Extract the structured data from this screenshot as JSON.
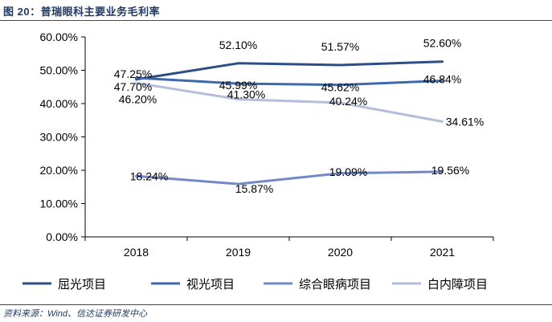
{
  "figure": {
    "title": "图 20：普瑞眼科主要业务毛利率",
    "source": "资料来源：Wind、信达证券研发中心"
  },
  "chart_data": {
    "type": "line",
    "categories": [
      "2018",
      "2019",
      "2020",
      "2021"
    ],
    "ylim": [
      0,
      60
    ],
    "yticks": [
      "0.00%",
      "10.00%",
      "20.00%",
      "30.00%",
      "40.00%",
      "50.00%",
      "60.00%"
    ],
    "grid": false,
    "legend_position": "bottom",
    "series": [
      {
        "name": "屈光项目",
        "color": "#2b4f85",
        "values": [
          47.25,
          52.1,
          51.57,
          52.6
        ],
        "labels": [
          "47.25%",
          "52.10%",
          "51.57%",
          "52.60%"
        ]
      },
      {
        "name": "视光项目",
        "color": "#3d68ad",
        "values": [
          47.7,
          45.99,
          45.62,
          46.84
        ],
        "labels": [
          "47.70%",
          "45.99%",
          "45.62%",
          "46.84%"
        ]
      },
      {
        "name": "综合眼病项目",
        "color": "#7289c7",
        "values": [
          18.24,
          15.87,
          19.09,
          19.56
        ],
        "labels": [
          "18.24%",
          "15.87%",
          "19.09%",
          "19.56%"
        ]
      },
      {
        "name": "白内障项目",
        "color": "#b3bedc",
        "values": [
          46.2,
          41.3,
          40.24,
          34.61
        ],
        "labels": [
          "46.20%",
          "41.30%",
          "40.24%",
          "34.61%"
        ]
      }
    ]
  }
}
